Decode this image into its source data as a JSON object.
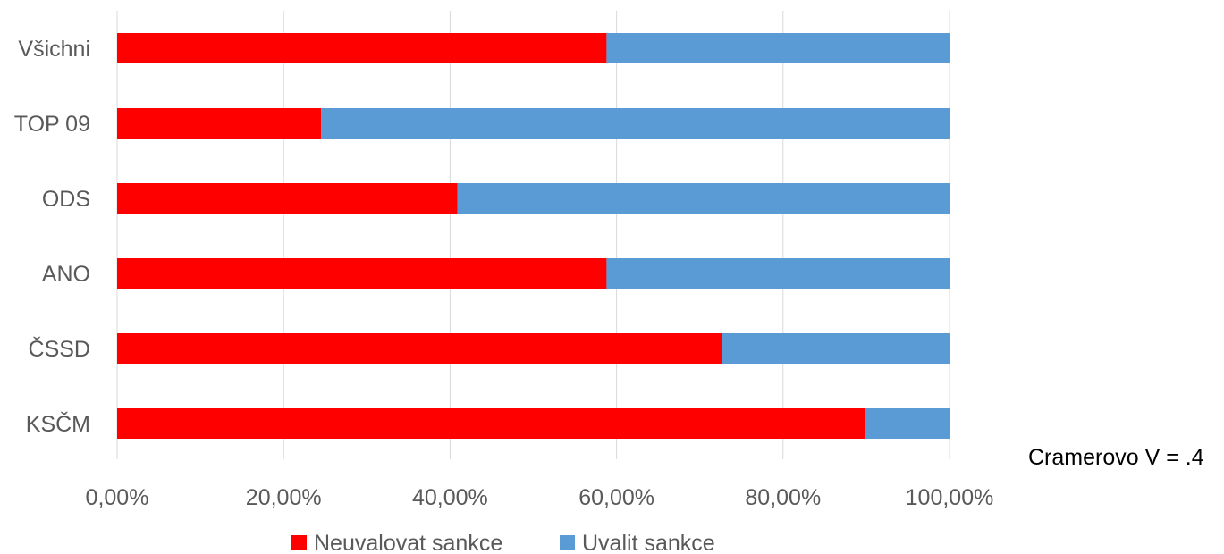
{
  "chart_data": {
    "type": "bar",
    "orientation": "horizontal",
    "stacked": true,
    "categories": [
      "Všichni",
      "TOP 09",
      "ODS",
      "ANO",
      "ČSSD",
      "KSČM"
    ],
    "series": [
      {
        "name": "Neuvalovat sankce",
        "color": "#ff0000",
        "values": [
          58.8,
          24.5,
          40.9,
          58.8,
          72.7,
          89.8
        ]
      },
      {
        "name": "Uvalit sankce",
        "color": "#5b9bd5",
        "values": [
          41.2,
          75.5,
          59.1,
          41.2,
          27.3,
          10.2
        ]
      }
    ],
    "x_ticks": [
      "0,00%",
      "20,00%",
      "40,00%",
      "60,00%",
      "80,00%",
      "100,00%"
    ],
    "xlim": [
      0,
      100
    ],
    "grid": "vertical",
    "legend": "bottom",
    "annotation": "Cramerovo V = .4"
  }
}
